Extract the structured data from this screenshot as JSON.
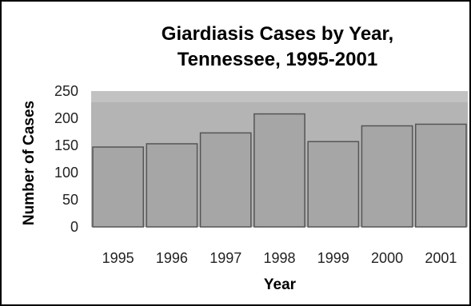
{
  "chart_data": {
    "type": "bar",
    "title": "Giardiasis Cases by Year,",
    "subtitle": "Tennessee, 1995-2001",
    "xlabel": "Year",
    "ylabel": "Number of Cases",
    "categories": [
      "1995",
      "1996",
      "1997",
      "1998",
      "1999",
      "2000",
      "2001"
    ],
    "values": [
      147,
      153,
      173,
      208,
      157,
      186,
      189
    ],
    "ylim": [
      0,
      250
    ],
    "yticks": [
      "0",
      "50",
      "100",
      "150",
      "200",
      "250"
    ],
    "grid": false,
    "legend": "none",
    "colors": {
      "bar": "#a6a6a6",
      "bar_edge": "#555555",
      "plot_background": "#c2c2c2",
      "plot_band": "#b4b4b4"
    }
  }
}
